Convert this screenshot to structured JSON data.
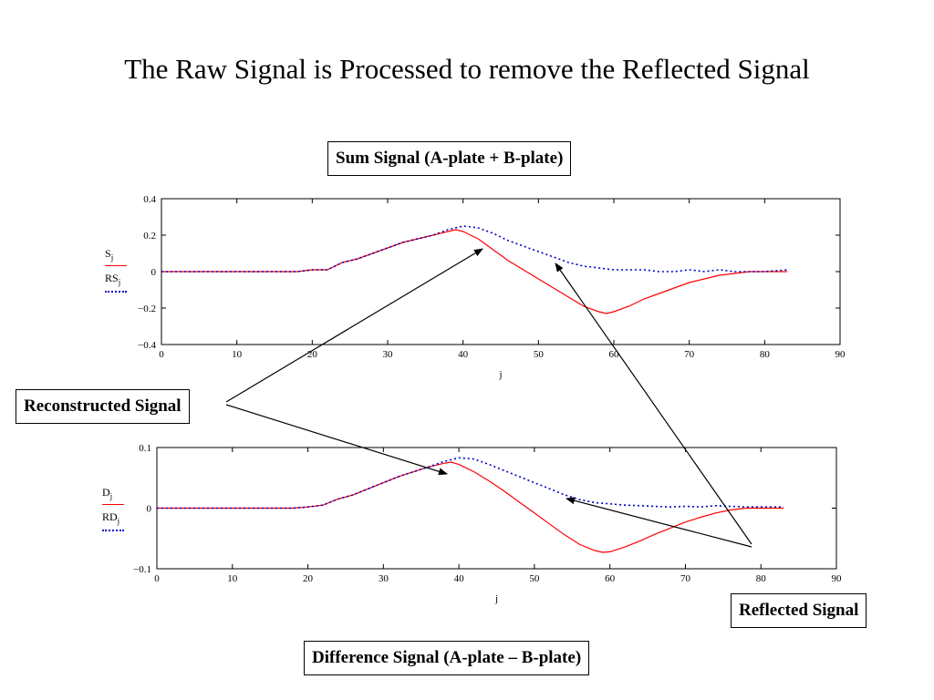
{
  "slide": {
    "title": "The Raw Signal is Processed to remove the Reflected Signal",
    "labels": {
      "sum_signal": "Sum Signal (A-plate + B-plate)",
      "difference_signal": "Difference Signal (A-plate – B-plate)",
      "reconstructed": "Reconstructed Signal",
      "reflected": "Reflected Signal"
    },
    "colors": {
      "reconstructed_line": "#ff0000",
      "raw_line": "#0000cc"
    }
  },
  "chart_data": [
    {
      "type": "line",
      "title": "",
      "xlabel": "j",
      "ylabel": "",
      "xlim": [
        0,
        90
      ],
      "ylim": [
        -0.4,
        0.4
      ],
      "x_ticks": [
        "0",
        "10",
        "20",
        "30",
        "40",
        "50",
        "60",
        "70",
        "80",
        "90"
      ],
      "y_ticks": [
        "0.4",
        "0.2",
        "0",
        "−0.2",
        "−0.4"
      ],
      "legend": [
        {
          "name": "S",
          "sub": "j",
          "style": "solid",
          "color": "#ff0000"
        },
        {
          "name": "RS",
          "sub": "j",
          "style": "dotted",
          "color": "#0000cc"
        }
      ],
      "series": [
        {
          "name": "S",
          "color": "#ff0000",
          "x": [
            0,
            5,
            10,
            15,
            18,
            20,
            22,
            24,
            26,
            28,
            30,
            32,
            34,
            36,
            38,
            39,
            40,
            42,
            44,
            46,
            48,
            50,
            52,
            54,
            56,
            58,
            59,
            60,
            62,
            64,
            66,
            68,
            70,
            72,
            74,
            76,
            78,
            80,
            83
          ],
          "y": [
            0.0,
            0.0,
            0.0,
            0.0,
            0.0,
            0.01,
            0.01,
            0.05,
            0.07,
            0.1,
            0.13,
            0.16,
            0.18,
            0.2,
            0.22,
            0.23,
            0.22,
            0.18,
            0.12,
            0.06,
            0.01,
            -0.04,
            -0.09,
            -0.14,
            -0.19,
            -0.22,
            -0.23,
            -0.22,
            -0.19,
            -0.15,
            -0.12,
            -0.09,
            -0.06,
            -0.04,
            -0.02,
            -0.01,
            0.0,
            0.0,
            0.0
          ]
        },
        {
          "name": "RS",
          "color": "#0000cc",
          "x": [
            0,
            5,
            10,
            15,
            18,
            20,
            22,
            24,
            26,
            28,
            30,
            32,
            34,
            36,
            38,
            40,
            42,
            44,
            46,
            48,
            50,
            52,
            54,
            56,
            58,
            60,
            62,
            64,
            66,
            68,
            70,
            72,
            74,
            76,
            78,
            80,
            83
          ],
          "y": [
            0.0,
            0.0,
            0.0,
            0.0,
            0.0,
            0.01,
            0.01,
            0.05,
            0.07,
            0.1,
            0.13,
            0.16,
            0.18,
            0.2,
            0.23,
            0.25,
            0.24,
            0.21,
            0.17,
            0.14,
            0.11,
            0.08,
            0.05,
            0.03,
            0.02,
            0.01,
            0.01,
            0.01,
            0.0,
            0.0,
            0.01,
            0.0,
            0.01,
            0.0,
            0.0,
            0.0,
            0.01
          ]
        }
      ]
    },
    {
      "type": "line",
      "title": "",
      "xlabel": "j",
      "ylabel": "",
      "xlim": [
        0,
        90
      ],
      "ylim": [
        -0.1,
        0.1
      ],
      "x_ticks": [
        "0",
        "10",
        "20",
        "30",
        "40",
        "50",
        "60",
        "70",
        "80",
        "90"
      ],
      "y_ticks": [
        "0.1",
        "0",
        "−0.1"
      ],
      "legend": [
        {
          "name": "D",
          "sub": "j",
          "style": "solid",
          "color": "#ff0000"
        },
        {
          "name": "RD",
          "sub": "j",
          "style": "dotted",
          "color": "#0000cc"
        }
      ],
      "series": [
        {
          "name": "D",
          "color": "#ff0000",
          "x": [
            0,
            5,
            10,
            15,
            18,
            20,
            22,
            24,
            26,
            28,
            30,
            32,
            34,
            36,
            38,
            39,
            40,
            42,
            44,
            46,
            48,
            50,
            52,
            54,
            56,
            58,
            59,
            60,
            62,
            64,
            66,
            68,
            70,
            72,
            74,
            76,
            78,
            80,
            83
          ],
          "y": [
            0.0,
            0.0,
            0.0,
            0.0,
            0.0,
            0.002,
            0.005,
            0.015,
            0.022,
            0.032,
            0.042,
            0.052,
            0.06,
            0.068,
            0.074,
            0.076,
            0.072,
            0.06,
            0.045,
            0.028,
            0.01,
            -0.008,
            -0.026,
            -0.044,
            -0.06,
            -0.07,
            -0.073,
            -0.072,
            -0.064,
            -0.054,
            -0.043,
            -0.033,
            -0.023,
            -0.015,
            -0.008,
            -0.003,
            0.0,
            0.0,
            0.0
          ]
        },
        {
          "name": "RD",
          "color": "#0000cc",
          "x": [
            0,
            5,
            10,
            15,
            18,
            20,
            22,
            24,
            26,
            28,
            30,
            32,
            34,
            36,
            38,
            40,
            42,
            44,
            46,
            48,
            50,
            52,
            54,
            56,
            58,
            60,
            62,
            64,
            66,
            68,
            70,
            72,
            74,
            76,
            78,
            80,
            83
          ],
          "y": [
            0.0,
            0.0,
            0.0,
            0.0,
            0.0,
            0.002,
            0.005,
            0.015,
            0.022,
            0.032,
            0.042,
            0.052,
            0.06,
            0.068,
            0.077,
            0.083,
            0.081,
            0.072,
            0.062,
            0.052,
            0.042,
            0.032,
            0.022,
            0.014,
            0.009,
            0.007,
            0.005,
            0.004,
            0.003,
            0.002,
            0.003,
            0.002,
            0.004,
            0.003,
            0.002,
            0.002,
            0.002
          ]
        }
      ]
    }
  ]
}
